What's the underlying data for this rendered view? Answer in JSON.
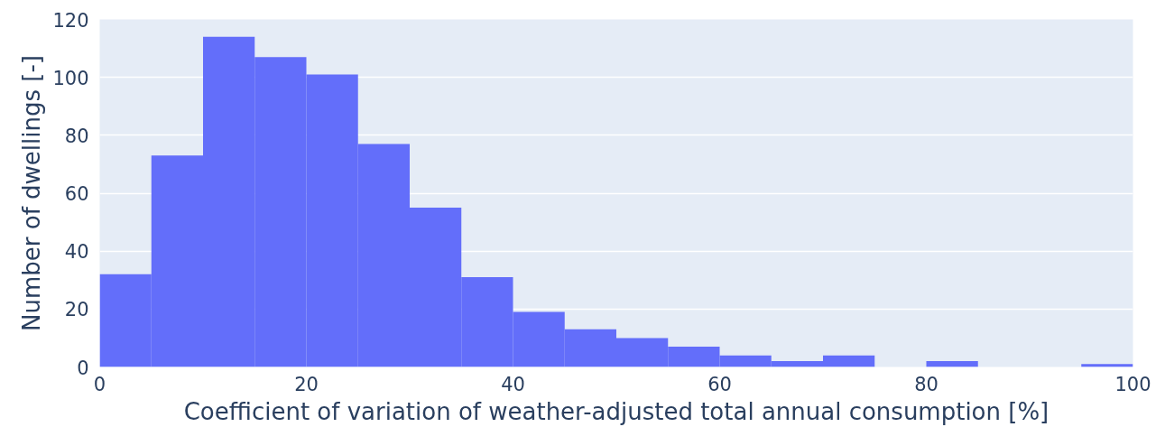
{
  "chart_data": {
    "type": "histogram",
    "xlabel": "Coefficient of variation of weather-adjusted total annual consumption [%]",
    "ylabel": "Number of dwellings [-]",
    "bins": [
      0,
      5,
      10,
      15,
      20,
      25,
      30,
      35,
      40,
      45,
      50,
      55,
      60,
      65,
      70,
      75,
      80,
      85,
      90,
      95,
      100
    ],
    "values": [
      32,
      73,
      114,
      107,
      101,
      77,
      55,
      31,
      19,
      13,
      10,
      7,
      4,
      2,
      4,
      0,
      2,
      0,
      0,
      1
    ],
    "color": "#636efa",
    "xlim": [
      0,
      100
    ],
    "ylim": [
      0,
      120
    ],
    "xticks": [
      0,
      20,
      40,
      60,
      80,
      100
    ],
    "yticks": [
      0,
      20,
      40,
      60,
      80,
      100,
      120
    ],
    "grid": "y"
  }
}
